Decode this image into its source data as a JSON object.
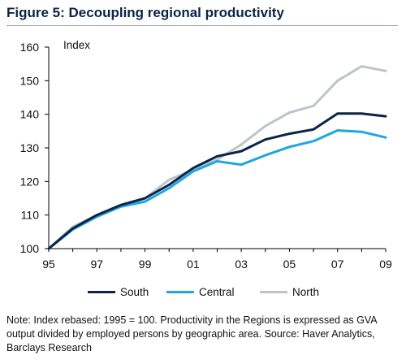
{
  "header": {
    "title": "Figure 5: Decoupling regional productivity"
  },
  "note": "Note: Index rebased: 1995 = 100.  Productivity in the Regions is expressed as GVA output divided by employed persons by geographic area. Source: Haver Analytics, Barclays Research",
  "chart_data": {
    "type": "line",
    "title": "",
    "xlabel": "",
    "ylabel": "Index",
    "x": [
      1995,
      1996,
      1997,
      1998,
      1999,
      2000,
      2001,
      2002,
      2003,
      2004,
      2005,
      2006,
      2007,
      2008,
      2009
    ],
    "xticks": [
      {
        "value": 1995,
        "label": "95"
      },
      {
        "value": 1997,
        "label": "97"
      },
      {
        "value": 1999,
        "label": "99"
      },
      {
        "value": 2001,
        "label": "01"
      },
      {
        "value": 2003,
        "label": "03"
      },
      {
        "value": 2005,
        "label": "05"
      },
      {
        "value": 2007,
        "label": "07"
      },
      {
        "value": 2009,
        "label": "09"
      }
    ],
    "yticks": [
      100,
      110,
      120,
      130,
      140,
      150,
      160
    ],
    "xlim": [
      1995,
      2009
    ],
    "ylim": [
      100,
      160
    ],
    "grid": false,
    "legend_position": "bottom",
    "series": [
      {
        "name": "South",
        "color": "#0b2346",
        "values": [
          100,
          106,
          110,
          113,
          115,
          119,
          124,
          127.5,
          129,
          132.5,
          134.2,
          135.5,
          140.2,
          140.2,
          139.4
        ]
      },
      {
        "name": "Central",
        "color": "#1ea7e0",
        "values": [
          100,
          105.7,
          109.5,
          112.5,
          114,
          118,
          123,
          126,
          125,
          127.8,
          130.3,
          132,
          135.2,
          134.8,
          133.1
        ]
      },
      {
        "name": "North",
        "color": "#b9c6cc",
        "values": [
          100,
          106.5,
          110,
          112.5,
          115,
          120.5,
          123.5,
          126.5,
          131,
          136.5,
          140.5,
          142.5,
          150,
          154.3,
          152.9
        ]
      }
    ]
  }
}
